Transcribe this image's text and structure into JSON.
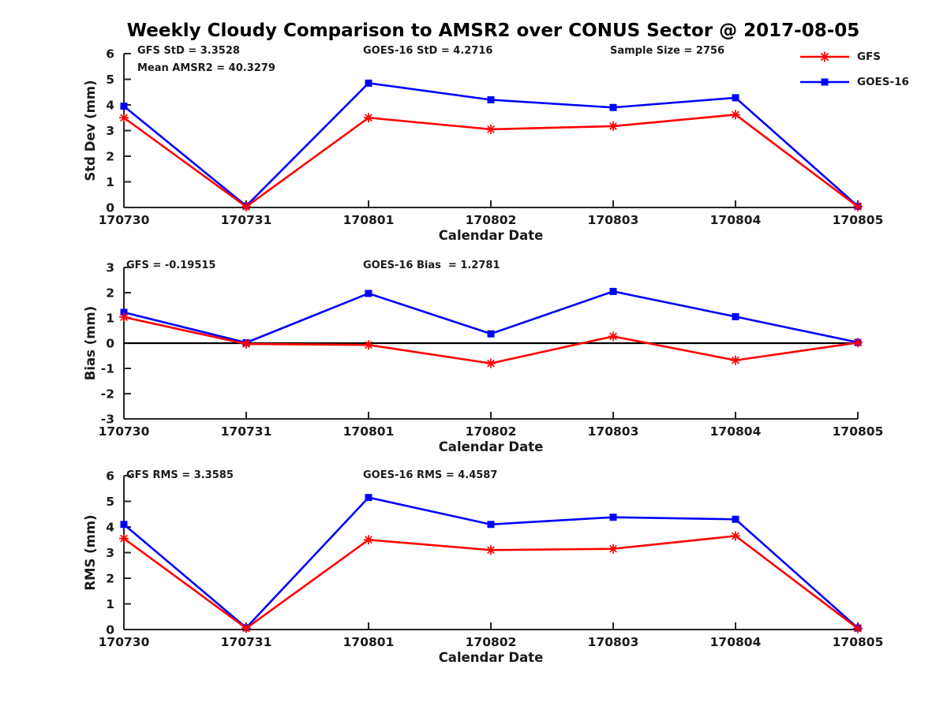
{
  "title": "Weekly Cloudy Comparison to AMSR2 over CONUS Sector @ 2017-08-05",
  "colors": {
    "gfs": "#FF0000",
    "goes16": "#0000FF",
    "axis": "#262626",
    "zero_line": "#000000"
  },
  "legend": {
    "position": "top-right",
    "items": [
      {
        "label": "GFS",
        "color": "#FF0000",
        "marker": "asterisk"
      },
      {
        "label": "GOES-16",
        "color": "#0000FF",
        "marker": "square"
      }
    ]
  },
  "chart_data": [
    {
      "type": "line",
      "panel": "std-dev",
      "categories": [
        "170730",
        "170731",
        "170801",
        "170802",
        "170803",
        "170804",
        "170805"
      ],
      "xlabel": "Calendar Date",
      "ylabel": "Std Dev (mm)",
      "ylim": [
        0,
        6
      ],
      "yticks": [
        0,
        1,
        2,
        3,
        4,
        5,
        6
      ],
      "grid": false,
      "zero_line": false,
      "annotations": [
        "GFS StD = 3.3528",
        "Mean AMSR2 = 40.3279",
        "GOES-16 StD = 4.2716",
        "Sample Size = 2756"
      ],
      "series": [
        {
          "name": "GFS",
          "color": "#FF0000",
          "marker": "asterisk",
          "values": [
            3.5,
            0.03,
            3.5,
            3.05,
            3.17,
            3.62,
            0.03
          ]
        },
        {
          "name": "GOES-16",
          "color": "#0000FF",
          "marker": "square",
          "values": [
            3.95,
            0.06,
            4.85,
            4.2,
            3.9,
            4.28,
            0.05
          ]
        }
      ]
    },
    {
      "type": "line",
      "panel": "bias",
      "categories": [
        "170730",
        "170731",
        "170801",
        "170802",
        "170803",
        "170804",
        "170805"
      ],
      "xlabel": "Calendar Date",
      "ylabel": "Bias (mm)",
      "ylim": [
        -3,
        3
      ],
      "yticks": [
        -3,
        -2,
        -1,
        0,
        1,
        2,
        3
      ],
      "grid": false,
      "zero_line": true,
      "annotations": [
        "GFS = -0.19515",
        "GOES-16 Bias  = 1.2781"
      ],
      "series": [
        {
          "name": "GFS",
          "color": "#FF0000",
          "marker": "asterisk",
          "values": [
            1.03,
            -0.03,
            -0.07,
            -0.8,
            0.27,
            -0.68,
            0.02
          ]
        },
        {
          "name": "GOES-16",
          "color": "#0000FF",
          "marker": "square",
          "values": [
            1.22,
            0.02,
            1.97,
            0.37,
            2.05,
            1.05,
            0.03
          ]
        }
      ]
    },
    {
      "type": "line",
      "panel": "rms",
      "categories": [
        "170730",
        "170731",
        "170801",
        "170802",
        "170803",
        "170804",
        "170805"
      ],
      "xlabel": "Calendar Date",
      "ylabel": "RMS (mm)",
      "ylim": [
        0,
        6
      ],
      "yticks": [
        0,
        1,
        2,
        3,
        4,
        5,
        6
      ],
      "grid": false,
      "zero_line": false,
      "annotations": [
        "GFS RMS = 3.3585",
        "GOES-16 RMS = 4.4587"
      ],
      "series": [
        {
          "name": "GFS",
          "color": "#FF0000",
          "marker": "asterisk",
          "values": [
            3.55,
            0.05,
            3.5,
            3.1,
            3.15,
            3.65,
            0.04
          ]
        },
        {
          "name": "GOES-16",
          "color": "#0000FF",
          "marker": "square",
          "values": [
            4.1,
            0.07,
            5.15,
            4.1,
            4.38,
            4.3,
            0.06
          ]
        }
      ]
    }
  ]
}
